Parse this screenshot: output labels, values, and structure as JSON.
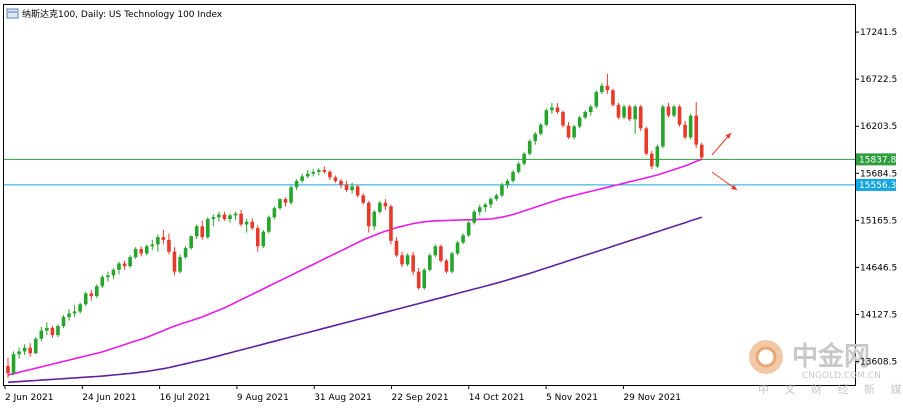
{
  "title": "纳斯达克100, Daily:  US Technology 100 Index",
  "colors": {
    "up": "#27a42b",
    "down": "#e83a2a",
    "ma_fast": "#e81be8",
    "ma_slow": "#6020a0",
    "hline_green": "#2e9e3e",
    "hline_blue": "#13a6df",
    "tag_green": "#2e9e3e",
    "tag_blue": "#13a6df",
    "arrow": "#e83a2a"
  },
  "watermark": {
    "brand": "中金网",
    "site": "CNGOLD.COM.CN",
    "tagline": "中 文 财 经 新 媒 体"
  },
  "chart_data": {
    "type": "candlestick",
    "x_labels": [
      "2 Jun 2021",
      "24 Jun 2021",
      "16 Jul 2021",
      "9 Aug 2021",
      "31 Aug 2021",
      "22 Sep 2021",
      "14 Oct 2021",
      "5 Nov 2021",
      "29 Nov 2021"
    ],
    "y_ticks": [
      17241.5,
      16722.5,
      16203.5,
      15684.5,
      15165.5,
      14646.5,
      14127.5,
      13608.5
    ],
    "ylim": [
      13350,
      17540
    ],
    "grid": false,
    "series": [
      {
        "name": "Price",
        "kind": "candles",
        "ohlc": [
          [
            13560,
            13650,
            13430,
            13480
          ],
          [
            13480,
            13720,
            13460,
            13690
          ],
          [
            13690,
            13760,
            13640,
            13720
          ],
          [
            13720,
            13800,
            13680,
            13760
          ],
          [
            13760,
            13810,
            13660,
            13700
          ],
          [
            13700,
            13880,
            13690,
            13860
          ],
          [
            13860,
            13990,
            13830,
            13950
          ],
          [
            13950,
            14040,
            13900,
            13980
          ],
          [
            13980,
            14000,
            13870,
            13900
          ],
          [
            13900,
            14020,
            13880,
            14000
          ],
          [
            14000,
            14120,
            13980,
            14100
          ],
          [
            14100,
            14190,
            14060,
            14140
          ],
          [
            14140,
            14230,
            14100,
            14160
          ],
          [
            14160,
            14260,
            14140,
            14240
          ],
          [
            14240,
            14380,
            14220,
            14360
          ],
          [
            14360,
            14400,
            14280,
            14330
          ],
          [
            14330,
            14460,
            14310,
            14440
          ],
          [
            14440,
            14560,
            14420,
            14540
          ],
          [
            14540,
            14600,
            14490,
            14560
          ],
          [
            14560,
            14640,
            14520,
            14620
          ],
          [
            14620,
            14710,
            14570,
            14690
          ],
          [
            14690,
            14720,
            14620,
            14660
          ],
          [
            14660,
            14780,
            14640,
            14760
          ],
          [
            14760,
            14870,
            14740,
            14850
          ],
          [
            14850,
            14880,
            14770,
            14800
          ],
          [
            14800,
            14900,
            14780,
            14880
          ],
          [
            14880,
            14950,
            14840,
            14900
          ],
          [
            14900,
            15010,
            14820,
            14980
          ],
          [
            14980,
            15060,
            14900,
            14950
          ],
          [
            14950,
            15020,
            14790,
            14820
          ],
          [
            14820,
            14870,
            14560,
            14600
          ],
          [
            14600,
            14790,
            14580,
            14760
          ],
          [
            14760,
            14880,
            14740,
            14860
          ],
          [
            14860,
            15000,
            14840,
            14990
          ],
          [
            14990,
            15120,
            14960,
            15100
          ],
          [
            15100,
            15160,
            14950,
            14980
          ],
          [
            14980,
            15200,
            14960,
            15180
          ],
          [
            15180,
            15230,
            15100,
            15200
          ],
          [
            15200,
            15260,
            15150,
            15230
          ],
          [
            15230,
            15260,
            15160,
            15180
          ],
          [
            15180,
            15240,
            15140,
            15220
          ],
          [
            15220,
            15260,
            15170,
            15240
          ],
          [
            15240,
            15280,
            15100,
            15120
          ],
          [
            15120,
            15180,
            15030,
            15150
          ],
          [
            15150,
            15190,
            15060,
            15080
          ],
          [
            15080,
            15110,
            14820,
            14880
          ],
          [
            14880,
            15060,
            14860,
            15040
          ],
          [
            15040,
            15220,
            15020,
            15200
          ],
          [
            15200,
            15320,
            15180,
            15300
          ],
          [
            15300,
            15410,
            15280,
            15400
          ],
          [
            15400,
            15420,
            15320,
            15360
          ],
          [
            15360,
            15550,
            15340,
            15530
          ],
          [
            15530,
            15620,
            15500,
            15600
          ],
          [
            15600,
            15680,
            15580,
            15650
          ],
          [
            15650,
            15720,
            15630,
            15680
          ],
          [
            15680,
            15730,
            15650,
            15700
          ],
          [
            15700,
            15740,
            15660,
            15720
          ],
          [
            15720,
            15760,
            15680,
            15700
          ],
          [
            15700,
            15720,
            15610,
            15640
          ],
          [
            15640,
            15660,
            15580,
            15600
          ],
          [
            15600,
            15620,
            15520,
            15560
          ],
          [
            15560,
            15600,
            15480,
            15500
          ],
          [
            15500,
            15580,
            15460,
            15540
          ],
          [
            15540,
            15560,
            15420,
            15440
          ],
          [
            15440,
            15460,
            15340,
            15360
          ],
          [
            15360,
            15380,
            15030,
            15100
          ],
          [
            15100,
            15280,
            15060,
            15260
          ],
          [
            15260,
            15380,
            15240,
            15360
          ],
          [
            15360,
            15400,
            15280,
            15320
          ],
          [
            15320,
            15340,
            14900,
            14940
          ],
          [
            14940,
            14980,
            14760,
            14780
          ],
          [
            14780,
            14820,
            14650,
            14680
          ],
          [
            14680,
            14800,
            14660,
            14780
          ],
          [
            14780,
            14820,
            14560,
            14600
          ],
          [
            14600,
            14640,
            14400,
            14420
          ],
          [
            14420,
            14640,
            14400,
            14620
          ],
          [
            14620,
            14800,
            14600,
            14780
          ],
          [
            14780,
            14900,
            14760,
            14880
          ],
          [
            14880,
            14900,
            14700,
            14720
          ],
          [
            14720,
            14740,
            14580,
            14600
          ],
          [
            14600,
            14820,
            14580,
            14800
          ],
          [
            14800,
            14940,
            14780,
            14920
          ],
          [
            14920,
            15020,
            14900,
            15000
          ],
          [
            15000,
            15160,
            14980,
            15140
          ],
          [
            15140,
            15280,
            15120,
            15260
          ],
          [
            15260,
            15340,
            15220,
            15310
          ],
          [
            15310,
            15360,
            15260,
            15340
          ],
          [
            15340,
            15420,
            15300,
            15400
          ],
          [
            15400,
            15460,
            15380,
            15440
          ],
          [
            15440,
            15580,
            15420,
            15560
          ],
          [
            15560,
            15620,
            15520,
            15600
          ],
          [
            15600,
            15720,
            15580,
            15700
          ],
          [
            15700,
            15810,
            15680,
            15790
          ],
          [
            15790,
            15920,
            15770,
            15900
          ],
          [
            15900,
            16060,
            15880,
            16040
          ],
          [
            16040,
            16140,
            16000,
            16120
          ],
          [
            16120,
            16240,
            16100,
            16220
          ],
          [
            16220,
            16400,
            16200,
            16380
          ],
          [
            16380,
            16460,
            16340,
            16410
          ],
          [
            16410,
            16460,
            16340,
            16360
          ],
          [
            16360,
            16380,
            16190,
            16210
          ],
          [
            16210,
            16250,
            16060,
            16080
          ],
          [
            16080,
            16220,
            16060,
            16200
          ],
          [
            16200,
            16320,
            16180,
            16300
          ],
          [
            16300,
            16380,
            16280,
            16360
          ],
          [
            16360,
            16440,
            16320,
            16420
          ],
          [
            16420,
            16600,
            16400,
            16580
          ],
          [
            16580,
            16680,
            16560,
            16650
          ],
          [
            16650,
            16780,
            16560,
            16600
          ],
          [
            16600,
            16620,
            16420,
            16440
          ],
          [
            16440,
            16460,
            16280,
            16300
          ],
          [
            16300,
            16440,
            16280,
            16420
          ],
          [
            16420,
            16440,
            16260,
            16280
          ],
          [
            16280,
            16440,
            16120,
            16420
          ],
          [
            16420,
            16440,
            16150,
            16180
          ],
          [
            16180,
            16200,
            15880,
            15900
          ],
          [
            15900,
            15930,
            15730,
            15760
          ],
          [
            15760,
            16000,
            15740,
            15980
          ],
          [
            15980,
            16440,
            15960,
            16420
          ],
          [
            16420,
            16460,
            16300,
            16320
          ],
          [
            16320,
            16440,
            16300,
            16420
          ],
          [
            16420,
            16440,
            16200,
            16220
          ],
          [
            16220,
            16260,
            16060,
            16080
          ],
          [
            16080,
            16340,
            16060,
            16320
          ],
          [
            16320,
            16470,
            15960,
            16000
          ],
          [
            16000,
            16020,
            15830,
            15860
          ]
        ]
      },
      {
        "name": "MA fast",
        "kind": "line",
        "values": [
          13460,
          13475,
          13490,
          13505,
          13520,
          13535,
          13550,
          13565,
          13580,
          13595,
          13610,
          13625,
          13640,
          13655,
          13670,
          13685,
          13700,
          13715,
          13735,
          13755,
          13775,
          13795,
          13815,
          13835,
          13855,
          13875,
          13900,
          13925,
          13950,
          13975,
          14000,
          14020,
          14040,
          14060,
          14080,
          14100,
          14125,
          14150,
          14175,
          14200,
          14230,
          14260,
          14290,
          14320,
          14350,
          14380,
          14410,
          14440,
          14470,
          14500,
          14530,
          14560,
          14590,
          14620,
          14650,
          14680,
          14710,
          14740,
          14770,
          14800,
          14830,
          14860,
          14890,
          14920,
          14950,
          14975,
          15000,
          15025,
          15045,
          15065,
          15085,
          15100,
          15115,
          15130,
          15140,
          15150,
          15155,
          15160,
          15162,
          15164,
          15166,
          15168,
          15170,
          15172,
          15174,
          15176,
          15178,
          15180,
          15190,
          15200,
          15215,
          15230,
          15250,
          15270,
          15290,
          15310,
          15330,
          15350,
          15370,
          15390,
          15410,
          15425,
          15440,
          15455,
          15470,
          15485,
          15500,
          15515,
          15530,
          15545,
          15560,
          15575,
          15590,
          15605,
          15620,
          15635,
          15650,
          15665,
          15685,
          15705,
          15725,
          15745,
          15765,
          15790,
          15815,
          15840
        ]
      },
      {
        "name": "MA slow",
        "kind": "line",
        "values": [
          13380,
          13384,
          13388,
          13392,
          13396,
          13400,
          13404,
          13408,
          13412,
          13416,
          13420,
          13424,
          13428,
          13432,
          13436,
          13440,
          13444,
          13448,
          13454,
          13460,
          13466,
          13472,
          13478,
          13484,
          13492,
          13500,
          13510,
          13520,
          13530,
          13542,
          13556,
          13570,
          13584,
          13598,
          13612,
          13626,
          13640,
          13656,
          13672,
          13688,
          13704,
          13720,
          13736,
          13752,
          13768,
          13784,
          13800,
          13816,
          13832,
          13848,
          13864,
          13880,
          13896,
          13912,
          13928,
          13944,
          13960,
          13976,
          13992,
          14008,
          14024,
          14040,
          14056,
          14072,
          14088,
          14104,
          14120,
          14136,
          14152,
          14168,
          14184,
          14200,
          14216,
          14232,
          14248,
          14264,
          14280,
          14296,
          14312,
          14328,
          14344,
          14360,
          14376,
          14392,
          14408,
          14424,
          14440,
          14456,
          14472,
          14490,
          14508,
          14526,
          14544,
          14562,
          14580,
          14600,
          14620,
          14640,
          14660,
          14680,
          14700,
          14720,
          14740,
          14760,
          14780,
          14800,
          14820,
          14840,
          14860,
          14880,
          14900,
          14920,
          14940,
          14960,
          14980,
          15000,
          15020,
          15040,
          15060,
          15080,
          15100,
          15120,
          15140,
          15160,
          15180,
          15200
        ]
      }
    ],
    "levels": [
      {
        "name": "resistance",
        "value": 15837.8,
        "label": "15837.8"
      },
      {
        "name": "support",
        "value": 15556.3,
        "label": "15556.3"
      }
    ]
  }
}
